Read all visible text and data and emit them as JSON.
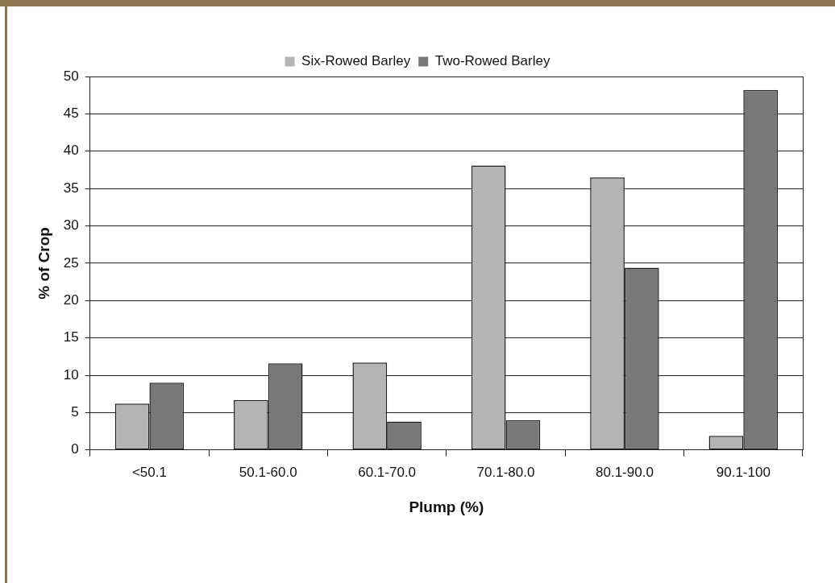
{
  "chart_data": {
    "type": "bar",
    "xlabel": "Plump (%)",
    "ylabel": "% of Crop",
    "categories": [
      "<50.1",
      "50.1-60.0",
      "60.1-70.0",
      "70.1-80.0",
      "80.1-90.0",
      "90.1-100"
    ],
    "series": [
      {
        "name": "Six-Rowed Barley",
        "color": "#b3b4b6",
        "values": [
          6.2,
          6.7,
          11.7,
          38.1,
          36.5,
          1.9
        ]
      },
      {
        "name": "Two-Rowed Barley",
        "color": "#77787a",
        "values": [
          9.0,
          11.6,
          3.8,
          4.0,
          24.4,
          48.2
        ]
      }
    ],
    "ylim": [
      0,
      50
    ],
    "yticks": [
      0,
      5,
      10,
      15,
      20,
      25,
      30,
      35,
      40,
      45,
      50
    ],
    "grid": "y",
    "legend": "top"
  }
}
